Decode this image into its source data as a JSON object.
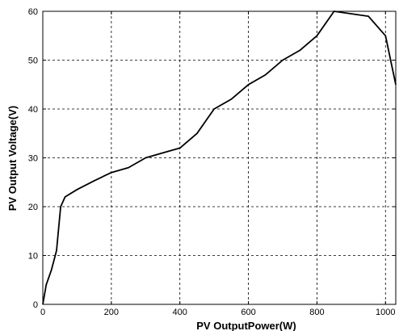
{
  "chart_data": {
    "type": "line",
    "title": "",
    "xlabel": "PV OutputPower(W)",
    "ylabel": "PV Output Voltage(V)",
    "xlim": [
      0,
      1030
    ],
    "ylim": [
      0,
      60
    ],
    "xticks": [
      0,
      200,
      400,
      600,
      800,
      1000
    ],
    "yticks": [
      0,
      10,
      20,
      30,
      40,
      50,
      60
    ],
    "grid": true,
    "series": [
      {
        "name": "",
        "color": "#000000",
        "x": [
          0,
          10,
          25,
          40,
          52,
          65,
          100,
          150,
          200,
          250,
          300,
          350,
          400,
          450,
          500,
          550,
          600,
          650,
          700,
          750,
          800,
          850,
          950,
          1000,
          1030
        ],
        "y": [
          0,
          4,
          7,
          11,
          20,
          22,
          23.5,
          25.3,
          27,
          28,
          30,
          31,
          32,
          35,
          40,
          42,
          45,
          47,
          50,
          52,
          55,
          60,
          59,
          55,
          45
        ]
      }
    ]
  }
}
